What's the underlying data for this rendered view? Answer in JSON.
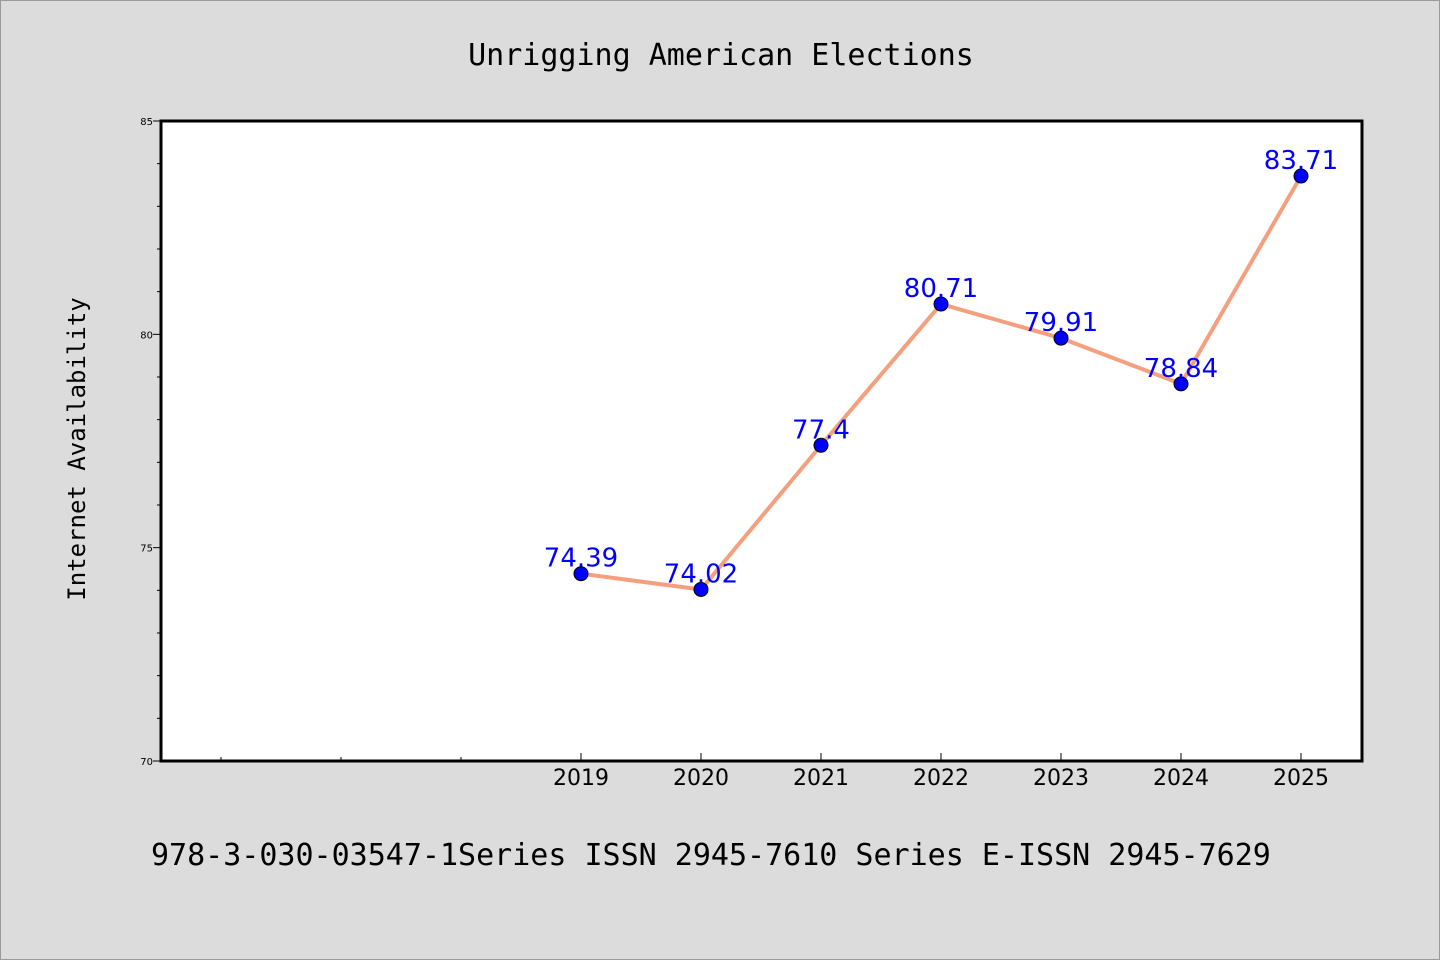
{
  "footer_text": "978-3-030-03547-1Series ISSN 2945-7610 Series E-ISSN 2945-7629",
  "colors": {
    "background": "#dcdcdc",
    "plot_background": "#ffffff",
    "line": "#f4a07e",
    "marker": "#0000ff",
    "data_label": "#0000ff"
  },
  "chart_data": {
    "type": "line",
    "title": "Unrigging American Elections",
    "xlabel": "",
    "ylabel": "Internet Availability",
    "categories": [
      "2019",
      "2020",
      "2021",
      "2022",
      "2023",
      "2024",
      "2025"
    ],
    "series": [
      {
        "values": [
          74.39,
          74.02,
          77.4,
          80.71,
          79.91,
          78.84,
          83.71
        ]
      }
    ],
    "data_labels": [
      "74.39",
      "74.02",
      "77.4",
      "80.71",
      "79.91",
      "78.84",
      "83.71"
    ],
    "ylim": [
      70,
      85
    ],
    "yticks": [
      70,
      75,
      80,
      85
    ],
    "ytick_labels": [
      "70",
      "75",
      "80",
      "85"
    ],
    "grid": false,
    "legend": "none"
  }
}
